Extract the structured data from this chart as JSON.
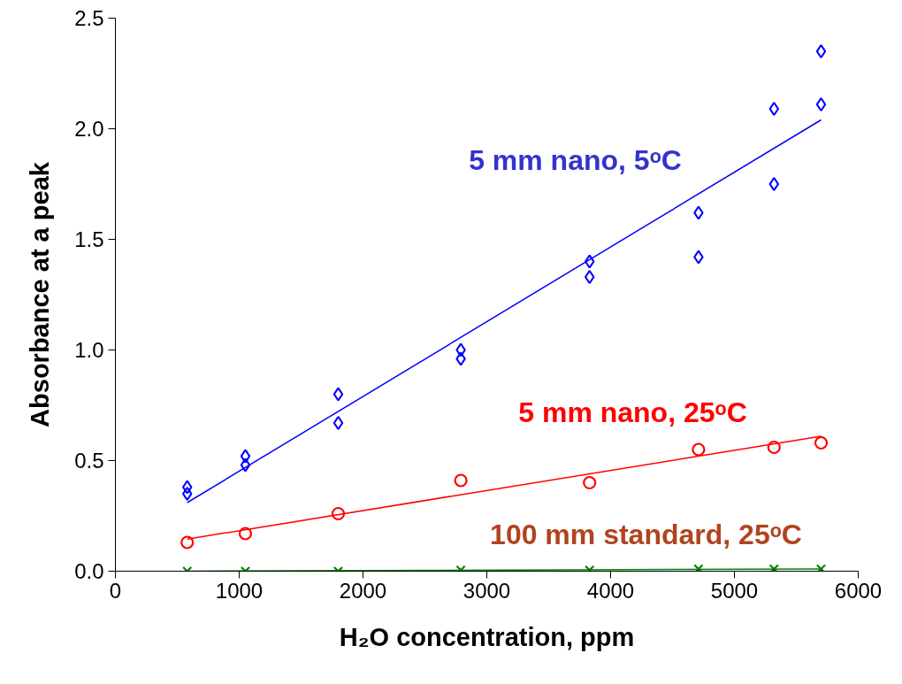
{
  "chart_data": {
    "type": "scatter",
    "xlabel": "H₂O concentration, ppm",
    "ylabel": "Absorbance at a peak",
    "xlim": [
      0,
      6000
    ],
    "xticks": [
      0,
      1000,
      2000,
      3000,
      4000,
      5000,
      6000
    ],
    "ylim": [
      0,
      2.5
    ],
    "yticks": [
      {
        "value": 0,
        "label": "0.0"
      },
      {
        "value": 0.5,
        "label": "0.5"
      },
      {
        "value": 1,
        "label": "1.0"
      },
      {
        "value": 1.5,
        "label": "1.5"
      },
      {
        "value": 2,
        "label": "2.0"
      },
      {
        "value": 2.5,
        "label": "2.5"
      }
    ],
    "grid": false,
    "series": [
      {
        "name": "5 mm nano, 5ᵒC",
        "marker": "diamond",
        "color": "#0000ff",
        "x": [
          580,
          580,
          1050,
          1050,
          1800,
          1800,
          2790,
          2790,
          3830,
          3830,
          4710,
          4710,
          5320,
          5320,
          5700,
          5700
        ],
        "values": [
          0.38,
          0.35,
          0.52,
          0.48,
          0.8,
          0.67,
          1.0,
          0.96,
          1.4,
          1.33,
          1.62,
          1.42,
          2.09,
          1.75,
          2.35,
          2.11
        ]
      },
      {
        "type": "line",
        "color": "#0000ff",
        "x": [
          580,
          5700
        ],
        "values": [
          0.31,
          2.04
        ]
      },
      {
        "name": "5 mm nano, 25ᵒC",
        "marker": "circle",
        "color": "#ff0000",
        "x": [
          580,
          1050,
          1800,
          2790,
          3830,
          4710,
          5320,
          5700
        ],
        "values": [
          0.13,
          0.17,
          0.26,
          0.41,
          0.4,
          0.55,
          0.56,
          0.58
        ]
      },
      {
        "type": "line",
        "color": "#ff0000",
        "x": [
          580,
          5700
        ],
        "values": [
          0.145,
          0.61
        ]
      },
      {
        "name": "100 mm standard, 25ᵒC",
        "marker": "cross",
        "color": "#008000",
        "x": [
          580,
          1050,
          1800,
          2790,
          3830,
          4710,
          5320,
          5700
        ],
        "values": [
          0.0,
          0.0,
          0.0,
          0.005,
          0.005,
          0.01,
          0.01,
          0.01
        ]
      },
      {
        "type": "line",
        "color": "#008000",
        "x": [
          580,
          5700
        ],
        "values": [
          0.0,
          0.01
        ]
      }
    ]
  }
}
